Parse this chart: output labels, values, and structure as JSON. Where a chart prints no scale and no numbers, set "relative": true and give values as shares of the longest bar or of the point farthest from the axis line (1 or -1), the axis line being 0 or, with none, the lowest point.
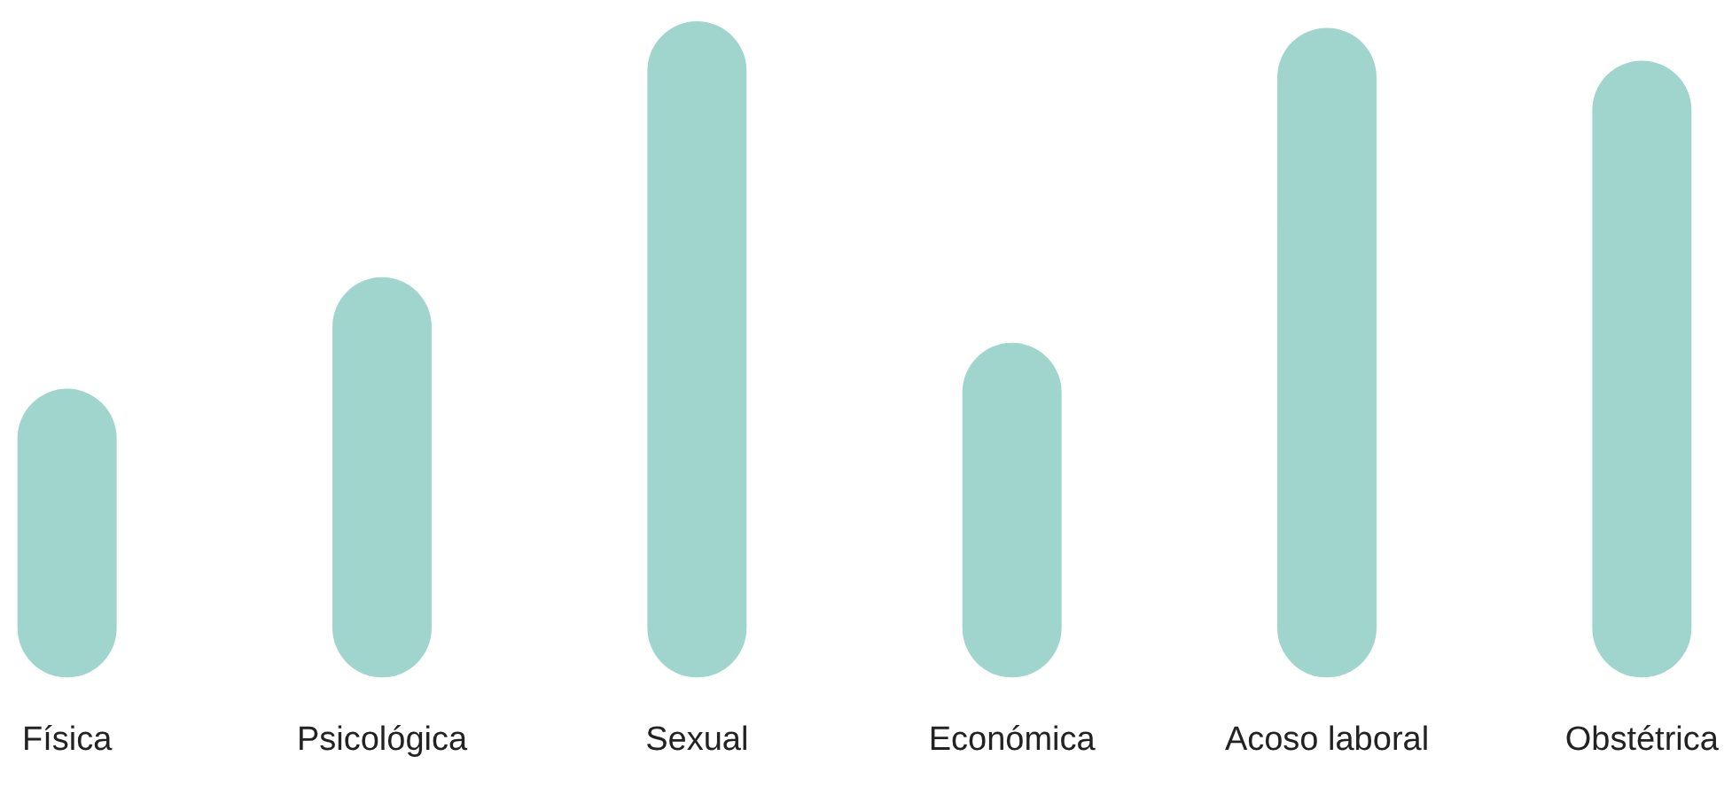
{
  "chart_data": {
    "type": "bar",
    "relative": true,
    "categories": [
      "Física",
      "Psicológica",
      "Sexual",
      "Económica",
      "Acoso laboral",
      "Obstétrica"
    ],
    "values": [
      0.44,
      0.61,
      1,
      0.51,
      0.99,
      0.94
    ],
    "color": "#9fd5cd",
    "grid": false,
    "legend": false
  }
}
